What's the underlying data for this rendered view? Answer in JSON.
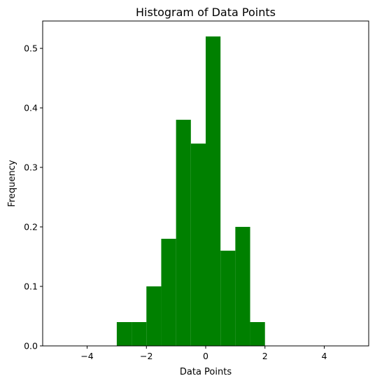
{
  "chart_data": {
    "type": "bar",
    "title": "Histogram of Data Points",
    "xlabel": "Data Points",
    "ylabel": "Frequency",
    "xlim": [
      -5.5,
      5.5
    ],
    "ylim": [
      0,
      0.546
    ],
    "xticks": [
      -4,
      -2,
      0,
      2,
      4
    ],
    "xtick_labels": [
      "−4",
      "−2",
      "0",
      "2",
      "4"
    ],
    "yticks": [
      0.0,
      0.1,
      0.2,
      0.3,
      0.4,
      0.5
    ],
    "ytick_labels": [
      "0.0",
      "0.1",
      "0.2",
      "0.3",
      "0.4",
      "0.5"
    ],
    "bin_edges": [
      -3.0,
      -2.5,
      -2.0,
      -1.5,
      -1.0,
      -0.5,
      0.0,
      0.5,
      1.0,
      1.5,
      2.0
    ],
    "values": [
      0.04,
      0.04,
      0.1,
      0.18,
      0.38,
      0.34,
      0.52,
      0.16,
      0.2,
      0.04
    ],
    "bar_color": "#008000",
    "grid": false,
    "legend": "none"
  }
}
